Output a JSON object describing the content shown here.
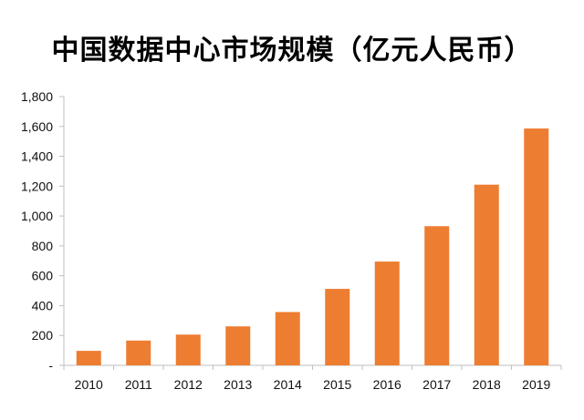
{
  "chart_data": {
    "type": "bar",
    "title": "中国数据中心市场规模（亿元人民币）",
    "categories": [
      "2010",
      "2011",
      "2012",
      "2013",
      "2014",
      "2015",
      "2016",
      "2017",
      "2018",
      "2019"
    ],
    "values": [
      97,
      166,
      206,
      261,
      357,
      512,
      695,
      932,
      1210,
      1586
    ],
    "ylim": [
      0,
      1800
    ],
    "yticks": [
      0,
      200,
      400,
      600,
      800,
      1000,
      1200,
      1400,
      1600,
      1800
    ],
    "ytick_labels": [
      "-",
      "200",
      "400",
      "600",
      "800",
      "1,000",
      "1,200",
      "1,400",
      "1,600",
      "1,800"
    ],
    "bar_color": "#ED7D31",
    "grid": false
  }
}
